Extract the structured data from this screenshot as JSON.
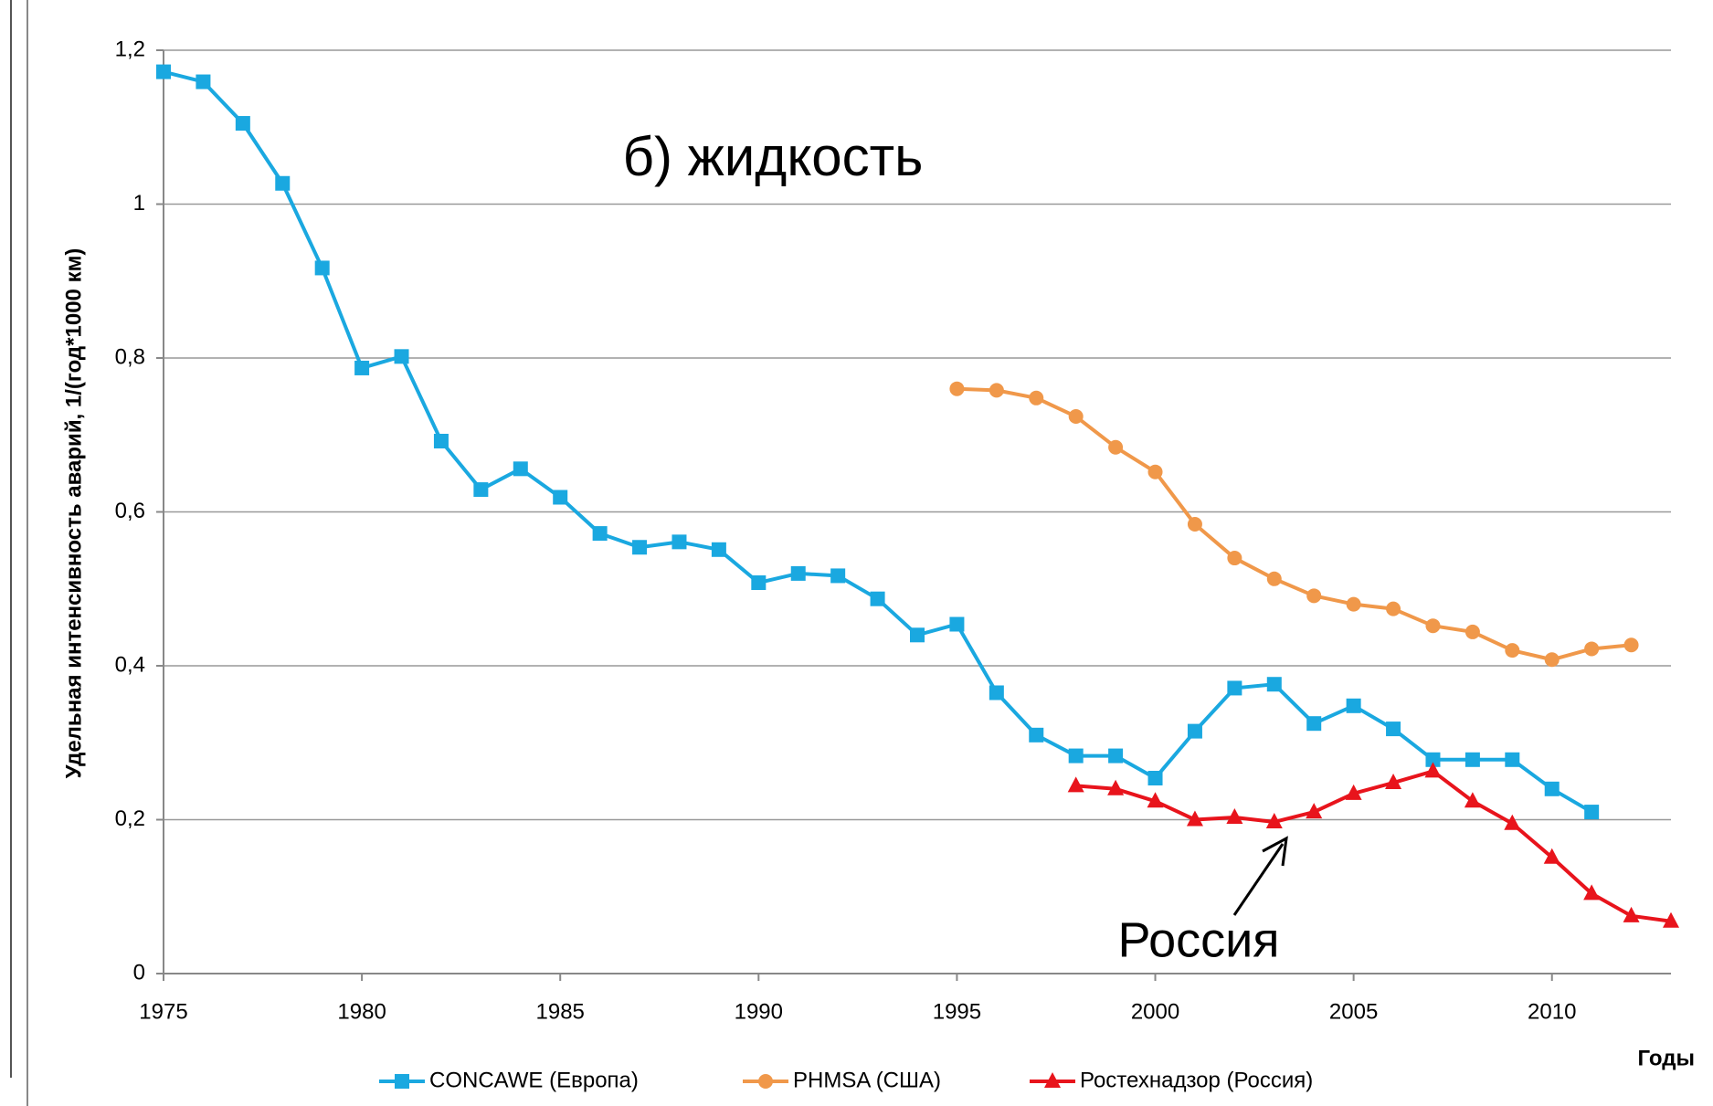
{
  "chart_data": {
    "type": "line",
    "title": "б) жидкость",
    "y_label": "Удельная интенсивность аварий, 1/(год*1000 км)",
    "x_label": "Годы",
    "annotation": "Россия",
    "xlim": [
      1975,
      2013
    ],
    "xticks": [
      1975,
      1980,
      1985,
      1990,
      1995,
      2000,
      2005,
      2010
    ],
    "ylim": [
      0,
      1.2
    ],
    "yticks": [
      0,
      {
        "value": 0.2,
        "label": "0,2"
      },
      {
        "value": 0.4,
        "label": "0,4"
      },
      {
        "value": 0.6,
        "label": "0,6"
      },
      {
        "value": 0.8,
        "label": "0,8"
      },
      1,
      {
        "value": 1.2,
        "label": "1,2"
      }
    ],
    "grid": true,
    "legend": "bottom",
    "series": [
      {
        "name": "CONCAWE (Европа)",
        "color": "#1aa8e0",
        "marker": "square",
        "x": [
          1975,
          1976,
          1977,
          1978,
          1979,
          1980,
          1981,
          1982,
          1983,
          1984,
          1985,
          1986,
          1987,
          1988,
          1989,
          1990,
          1991,
          1992,
          1993,
          1994,
          1995,
          1996,
          1997,
          1998,
          1999,
          2000,
          2001,
          2002,
          2003,
          2004,
          2005,
          2006,
          2007,
          2008,
          2009,
          2010,
          2011
        ],
        "values": [
          1.172,
          1.159,
          1.105,
          1.027,
          0.917,
          0.787,
          0.802,
          0.692,
          0.629,
          0.656,
          0.619,
          0.572,
          0.554,
          0.561,
          0.551,
          0.508,
          0.52,
          0.517,
          0.487,
          0.44,
          0.454,
          0.365,
          0.31,
          0.283,
          0.283,
          0.254,
          0.315,
          0.371,
          0.376,
          0.325,
          0.348,
          0.318,
          0.278,
          0.278,
          0.278,
          0.24,
          0.21
        ]
      },
      {
        "name": "PHMSA (США)",
        "color": "#f0984a",
        "marker": "circle",
        "x": [
          1995,
          1996,
          1997,
          1998,
          1999,
          2000,
          2001,
          2002,
          2003,
          2004,
          2005,
          2006,
          2007,
          2008,
          2009,
          2010,
          2011,
          2012
        ],
        "values": [
          0.76,
          0.758,
          0.748,
          0.724,
          0.684,
          0.652,
          0.584,
          0.54,
          0.513,
          0.491,
          0.48,
          0.474,
          0.452,
          0.444,
          0.42,
          0.408,
          0.422,
          0.427
        ]
      },
      {
        "name": "Ростехнадзор (Россия)",
        "color": "#e8141c",
        "marker": "triangle",
        "x": [
          1998,
          1999,
          2000,
          2001,
          2002,
          2003,
          2004,
          2005,
          2006,
          2007,
          2008,
          2009,
          2010,
          2011,
          2012,
          2013
        ],
        "values": [
          0.244,
          0.24,
          0.224,
          0.2,
          0.203,
          0.197,
          0.21,
          0.234,
          0.248,
          0.263,
          0.224,
          0.195,
          0.151,
          0.104,
          0.075,
          0.068
        ]
      }
    ]
  }
}
